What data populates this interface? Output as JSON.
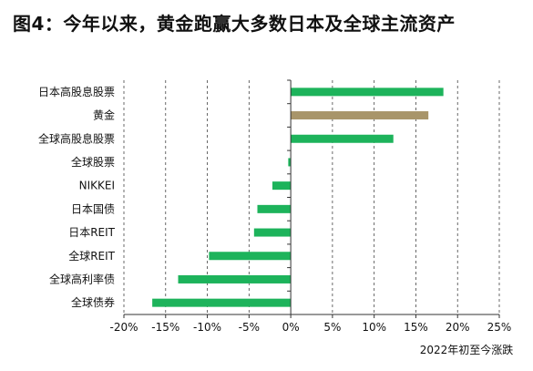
{
  "title": "图4：今年以来，黄金跑赢大多数日本及全球主流资产",
  "chart_data": {
    "type": "bar",
    "orientation": "horizontal",
    "title": "图4：今年以来，黄金跑赢大多数日本及全球主流资产",
    "xlabel": "2022年初至今涨跌",
    "ylabel": "",
    "xlim": [
      -20,
      25
    ],
    "xticks": [
      -20,
      -15,
      -10,
      -5,
      0,
      5,
      10,
      15,
      20,
      25
    ],
    "xtick_labels": [
      "-20%",
      "-15%",
      "-10%",
      "-5%",
      "0%",
      "5%",
      "10%",
      "15%",
      "20%",
      "25%"
    ],
    "grid": "vertical dashed",
    "categories": [
      "日本高股息股票",
      "黄金",
      "全球高股息股票",
      "全球股票",
      "NIKKEI",
      "日本国债",
      "日本REIT",
      "全球REIT",
      "全球高利率债",
      "全球债券"
    ],
    "values": [
      18.3,
      16.5,
      12.3,
      -0.3,
      -2.2,
      -4.0,
      -4.4,
      -9.8,
      -13.5,
      -16.6
    ],
    "colors": [
      "#1db35b",
      "#a8956a",
      "#1db35b",
      "#1db35b",
      "#1db35b",
      "#1db35b",
      "#1db35b",
      "#1db35b",
      "#1db35b",
      "#1db35b"
    ]
  }
}
